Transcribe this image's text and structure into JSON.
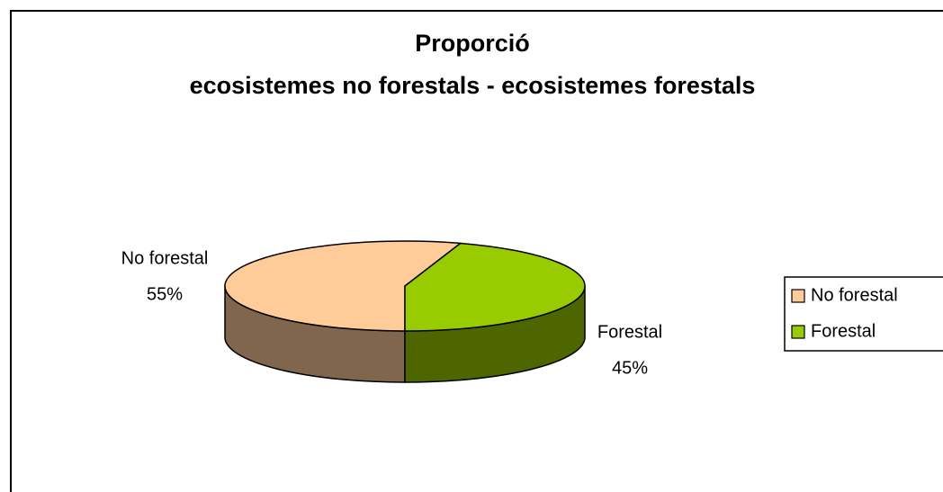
{
  "chart_data": {
    "type": "pie",
    "title": [
      "Proporció",
      "ecosistemes no forestals - ecosistemes forestals"
    ],
    "categories": [
      "No forestal",
      "Forestal"
    ],
    "values": [
      55,
      45
    ],
    "value_labels": [
      "55%",
      "45%"
    ],
    "colors": [
      "#ffcc99",
      "#99cc00"
    ],
    "legend": "right"
  }
}
